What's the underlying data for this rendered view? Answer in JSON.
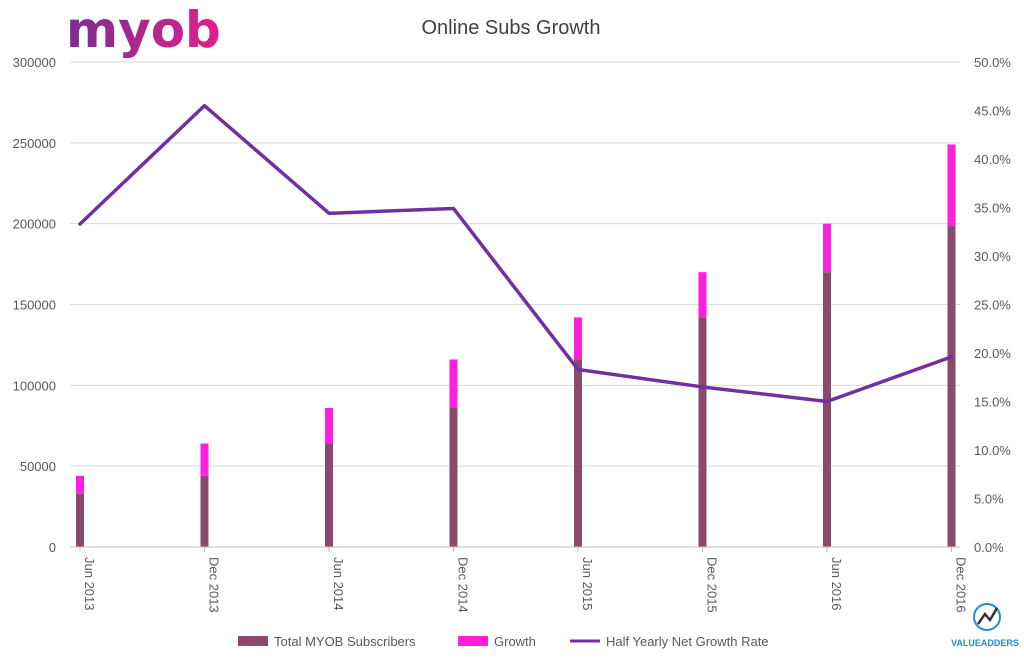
{
  "logo": {
    "text": "myob",
    "gradient_start": "#7b2d8e",
    "gradient_end": "#e0218a"
  },
  "watermark": {
    "text": "VALUEADDERS",
    "color": "#1f8dd6"
  },
  "chart_data": {
    "type": "bar",
    "title": "Online Subs Growth",
    "categories": [
      "Jun 2013",
      "Dec 2013",
      "Jun 2014",
      "Dec 2014",
      "Jun 2015",
      "Dec 2015",
      "Jun 2016",
      "Dec 2016"
    ],
    "series": [
      {
        "name": "Total MYOB Subscribers",
        "type": "stacked-bar",
        "axis": "left",
        "color": "#8b4a6b",
        "values": [
          33000,
          44000,
          64000,
          86000,
          116000,
          142000,
          170000,
          199000
        ]
      },
      {
        "name": "Growth",
        "type": "stacked-bar",
        "axis": "left",
        "color": "#ff1fdf",
        "values": [
          11000,
          20000,
          22000,
          30000,
          26000,
          28000,
          30000,
          50000
        ]
      },
      {
        "name": "Half Yearly Net Growth Rate",
        "type": "line",
        "axis": "right",
        "color": "#7030a0",
        "values": [
          0.333,
          0.455,
          0.344,
          0.349,
          0.183,
          0.165,
          0.15,
          0.196
        ]
      }
    ],
    "y_left": {
      "min": 0,
      "max": 300000,
      "ticks": [
        "0",
        "50000",
        "100000",
        "150000",
        "200000",
        "250000",
        "300000"
      ]
    },
    "y_right": {
      "min": 0,
      "max": 0.5,
      "ticks": [
        "0.0%",
        "5.0%",
        "10.0%",
        "15.0%",
        "20.0%",
        "25.0%",
        "30.0%",
        "35.0%",
        "40.0%",
        "45.0%",
        "50.0%"
      ]
    },
    "grid": true,
    "legend_position": "bottom",
    "xlabel": "",
    "ylabel": ""
  }
}
